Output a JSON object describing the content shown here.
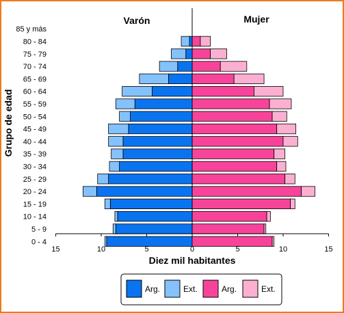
{
  "chart_data": {
    "type": "bar",
    "subtype": "population-pyramid",
    "left_title": "Varón",
    "right_title": "Mujer",
    "xlabel": "Diez mil habitantes",
    "ylabel": "Grupo de edad",
    "xlim": [
      -15,
      15
    ],
    "x_ticks": [
      -15,
      -10,
      -5,
      0,
      5,
      10,
      15
    ],
    "x_tick_labels": [
      "15",
      "10",
      "5",
      "0",
      "5",
      "10",
      "15"
    ],
    "categories": [
      "0 - 4",
      "5 - 9",
      "10 - 14",
      "15 - 19",
      "20 - 24",
      "25 - 29",
      "30 - 34",
      "35 - 39",
      "40 - 44",
      "45 - 49",
      "50 - 54",
      "55 - 59",
      "60 - 64",
      "65 - 69",
      "70 - 74",
      "75 - 79",
      "80 - 84",
      "85 y más"
    ],
    "series": [
      {
        "name": "Arg.",
        "side": "male",
        "color": "#0a74f0",
        "values": [
          9.4,
          8.4,
          8.2,
          9.0,
          10.5,
          9.2,
          8.0,
          7.6,
          7.6,
          7.0,
          6.8,
          6.3,
          4.4,
          2.6,
          1.6,
          0.7,
          0.3,
          0
        ]
      },
      {
        "name": "Ext.",
        "side": "male",
        "color": "#85c1fa",
        "values": [
          0.2,
          0.3,
          0.3,
          0.6,
          1.5,
          1.2,
          1.1,
          1.3,
          1.6,
          2.2,
          1.2,
          2.1,
          3.3,
          3.2,
          2.0,
          1.6,
          0.9,
          0
        ]
      },
      {
        "name": "Arg.",
        "side": "female",
        "color": "#f7449a",
        "values": [
          8.8,
          7.9,
          8.2,
          10.8,
          12.0,
          10.2,
          9.3,
          9.0,
          10.0,
          9.3,
          8.8,
          8.5,
          6.8,
          4.6,
          3.1,
          2.0,
          0.9,
          0
        ]
      },
      {
        "name": "Ext.",
        "side": "female",
        "color": "#fbb0d2",
        "values": [
          0.2,
          0.2,
          0.4,
          0.5,
          1.5,
          1.1,
          1.0,
          1.2,
          1.6,
          2.1,
          1.6,
          2.4,
          3.2,
          3.3,
          2.9,
          1.8,
          1.1,
          0
        ]
      }
    ],
    "legend": {
      "position": "bottom",
      "items": [
        {
          "label": "Arg.",
          "color": "#0a74f0"
        },
        {
          "label": "Ext.",
          "color": "#85c1fa"
        },
        {
          "label": "Arg.",
          "color": "#f7449a"
        },
        {
          "label": "Ext.",
          "color": "#fbb0d2"
        }
      ]
    },
    "frame_color": "#f07a18"
  }
}
